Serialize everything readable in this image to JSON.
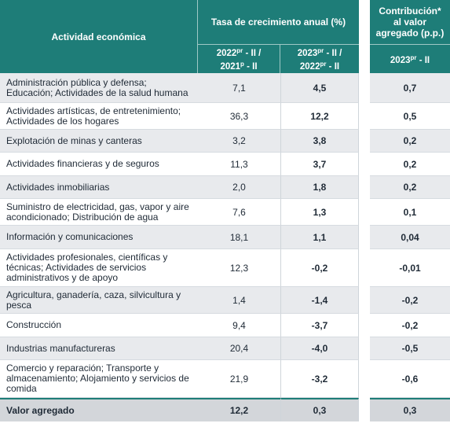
{
  "header": {
    "activity": "Actividad económica",
    "growth_group": "Tasa de crecimiento anual (%)",
    "contrib_group": "Contribución* al valor agregado (p.p.)",
    "col_2022": {
      "a": "2022",
      "a_sup": "pr",
      "b": " - II / ",
      "c": "2021",
      "c_sup": "p",
      "d": " - II"
    },
    "col_2023": {
      "a": "2023",
      "a_sup": "pr",
      "b": " - II / ",
      "c": "2022",
      "c_sup": "pr",
      "d": " - II"
    },
    "col_contrib": {
      "a": "2023",
      "a_sup": "pr",
      "b": " - II"
    }
  },
  "rows": [
    {
      "label": "Administración pública y defensa; Educación; Actividades de la salud humana",
      "g2022": "7,1",
      "g2023": "4,5",
      "contrib": "0,7"
    },
    {
      "label": "Actividades artísticas, de entretenimiento; Actividades de los hogares",
      "g2022": "36,3",
      "g2023": "12,2",
      "contrib": "0,5"
    },
    {
      "label": "Explotación de minas y canteras",
      "g2022": "3,2",
      "g2023": "3,8",
      "contrib": "0,2"
    },
    {
      "label": "Actividades financieras y de seguros",
      "g2022": "11,3",
      "g2023": "3,7",
      "contrib": "0,2"
    },
    {
      "label": "Actividades inmobiliarias",
      "g2022": "2,0",
      "g2023": "1,8",
      "contrib": "0,2"
    },
    {
      "label": "Suministro de electricidad, gas, vapor y aire acondicionado; Distribución de agua",
      "g2022": "7,6",
      "g2023": "1,3",
      "contrib": "0,1"
    },
    {
      "label": "Información y comunicaciones",
      "g2022": "18,1",
      "g2023": "1,1",
      "contrib": "0,04"
    },
    {
      "label": "Actividades profesionales, científicas y técnicas; Actividades de servicios administrativos y de apoyo",
      "g2022": "12,3",
      "g2023": "-0,2",
      "contrib": "-0,01"
    },
    {
      "label": "Agricultura, ganadería, caza, silvicultura y pesca",
      "g2022": "1,4",
      "g2023": "-1,4",
      "contrib": "-0,2"
    },
    {
      "label": "Construcción",
      "g2022": "9,4",
      "g2023": "-3,7",
      "contrib": "-0,2"
    },
    {
      "label": "Industrias manufactureras",
      "g2022": "20,4",
      "g2023": "-4,0",
      "contrib": "-0,5"
    },
    {
      "label": "Comercio y reparación; Transporte y almacenamiento; Alojamiento y servicios de comida",
      "g2022": "21,9",
      "g2023": "-3,2",
      "contrib": "-0,6"
    }
  ],
  "total": {
    "label": "Valor agregado",
    "g2022": "12,2",
    "g2023": "0,3",
    "contrib": "0,3"
  }
}
